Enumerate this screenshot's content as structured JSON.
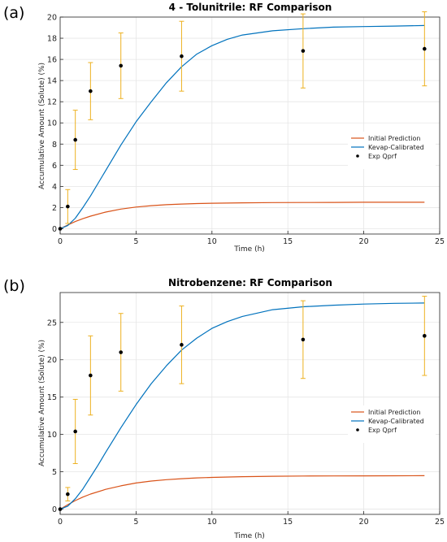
{
  "colors": {
    "initial": "#d95319",
    "kevap": "#0072bd",
    "errorbar": "#edb120",
    "points": "#000000",
    "grid": "#e6e6e6",
    "axis": "#262626"
  },
  "chart_data": [
    {
      "panel_label": "(a)",
      "type": "line",
      "title": "4 - Tolunitrile: RF Comparison",
      "xlabel": "Time (h)",
      "ylabel": "Accumulative Amount (Solute) (%)",
      "xlim": [
        0,
        25
      ],
      "ylim": [
        -0.5,
        20
      ],
      "xticks": [
        0,
        5,
        10,
        15,
        20,
        25
      ],
      "yticks": [
        0,
        2,
        4,
        6,
        8,
        10,
        12,
        14,
        16,
        18,
        20
      ],
      "grid": true,
      "legend_position": "right",
      "legend": [
        "Initial Prediction",
        "Kevap-Calibrated",
        "Exp Qprf"
      ],
      "series": [
        {
          "name": "Initial Prediction",
          "kind": "line",
          "x": [
            0,
            0.5,
            1,
            1.5,
            2,
            3,
            4,
            5,
            6,
            7,
            8,
            9,
            10,
            12,
            14,
            16,
            18,
            20,
            22,
            24
          ],
          "y": [
            0,
            0.35,
            0.68,
            0.95,
            1.19,
            1.57,
            1.86,
            2.05,
            2.18,
            2.27,
            2.33,
            2.38,
            2.41,
            2.45,
            2.47,
            2.48,
            2.49,
            2.5,
            2.5,
            2.5
          ]
        },
        {
          "name": "Kevap-Calibrated",
          "kind": "line",
          "x": [
            0,
            0.5,
            1,
            1.5,
            2,
            2.5,
            3,
            4,
            5,
            6,
            7,
            8,
            9,
            10,
            11,
            12,
            14,
            16,
            18,
            20,
            22,
            24
          ],
          "y": [
            0,
            0.3,
            1.0,
            2.0,
            3.1,
            4.3,
            5.5,
            7.9,
            10.1,
            12.0,
            13.8,
            15.3,
            16.5,
            17.3,
            17.9,
            18.3,
            18.7,
            18.9,
            19.05,
            19.1,
            19.15,
            19.2
          ]
        },
        {
          "name": "Exp Qprf",
          "kind": "scatter",
          "x": [
            0,
            0.5,
            1,
            2,
            4,
            8,
            16,
            24
          ],
          "y": [
            0,
            2.1,
            8.4,
            13.0,
            15.4,
            16.3,
            16.8,
            17.0
          ],
          "err": [
            0,
            1.6,
            2.8,
            2.7,
            3.1,
            3.3,
            3.5,
            3.5
          ]
        }
      ]
    },
    {
      "panel_label": "(b)",
      "type": "line",
      "title": "Nitrobenzene: RF Comparison",
      "xlabel": "Time (h)",
      "ylabel": "Accumulative Amount (Solute) (%)",
      "xlim": [
        0,
        25
      ],
      "ylim": [
        -0.7,
        29
      ],
      "xticks": [
        0,
        5,
        10,
        15,
        20,
        25
      ],
      "yticks": [
        0,
        5,
        10,
        15,
        20,
        25
      ],
      "grid": true,
      "legend_position": "right",
      "legend": [
        "Initial Prediction",
        "Kevap-Calibrated",
        "Exp Qprf"
      ],
      "series": [
        {
          "name": "Initial Prediction",
          "kind": "line",
          "x": [
            0,
            0.5,
            1,
            1.5,
            2,
            3,
            4,
            5,
            6,
            7,
            8,
            9,
            10,
            12,
            14,
            16,
            18,
            20,
            22,
            24
          ],
          "y": [
            0,
            0.6,
            1.15,
            1.62,
            2.02,
            2.65,
            3.12,
            3.5,
            3.76,
            3.95,
            4.08,
            4.18,
            4.25,
            4.35,
            4.4,
            4.43,
            4.45,
            4.46,
            4.47,
            4.48
          ]
        },
        {
          "name": "Kevap-Calibrated",
          "kind": "line",
          "x": [
            0,
            0.5,
            1,
            1.5,
            2,
            2.5,
            3,
            4,
            5,
            6,
            7,
            8,
            9,
            10,
            11,
            12,
            14,
            16,
            18,
            20,
            22,
            24
          ],
          "y": [
            0,
            0.4,
            1.4,
            2.7,
            4.3,
            5.9,
            7.6,
            10.9,
            14.0,
            16.8,
            19.2,
            21.3,
            22.9,
            24.2,
            25.1,
            25.8,
            26.7,
            27.1,
            27.3,
            27.45,
            27.55,
            27.6
          ]
        },
        {
          "name": "Exp Qprf",
          "kind": "scatter",
          "x": [
            0,
            0.5,
            1,
            2,
            4,
            8,
            16,
            24
          ],
          "y": [
            0,
            2.0,
            10.4,
            17.9,
            21.0,
            22.0,
            22.7,
            23.2
          ],
          "err": [
            0,
            0.9,
            4.3,
            5.3,
            5.2,
            5.2,
            5.2,
            5.3
          ]
        }
      ]
    }
  ]
}
